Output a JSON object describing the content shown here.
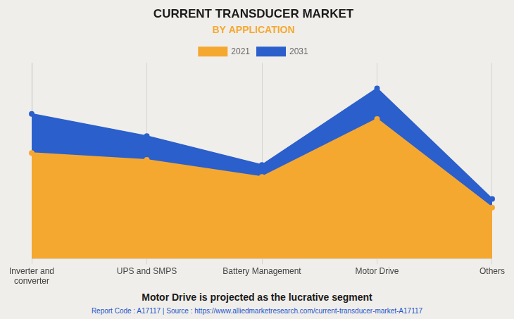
{
  "chart_data": {
    "type": "area",
    "title": "CURRENT TRANSDUCER MARKET",
    "subtitle": "BY APPLICATION",
    "categories": [
      "Inverter and\nconverter",
      "UPS and SMPS",
      "Battery Management",
      "Motor Drive",
      "Others"
    ],
    "series": [
      {
        "name": "2021",
        "color": "#F5A830",
        "values": [
          62,
          58,
          48,
          82,
          30
        ]
      },
      {
        "name": "2031",
        "color": "#2B5FCC",
        "values": [
          85,
          72,
          55,
          100,
          35
        ]
      }
    ],
    "ylim": [
      0,
      115
    ],
    "grid": true,
    "legend": "top",
    "tick_labels": "x",
    "marker": "circle",
    "annotations": [
      "Motor Drive is projected as the lucrative segment",
      "Report Code : A17117  |  Source : https://www.alliedmarketresearch.com/current-transducer-market-A17117"
    ]
  }
}
